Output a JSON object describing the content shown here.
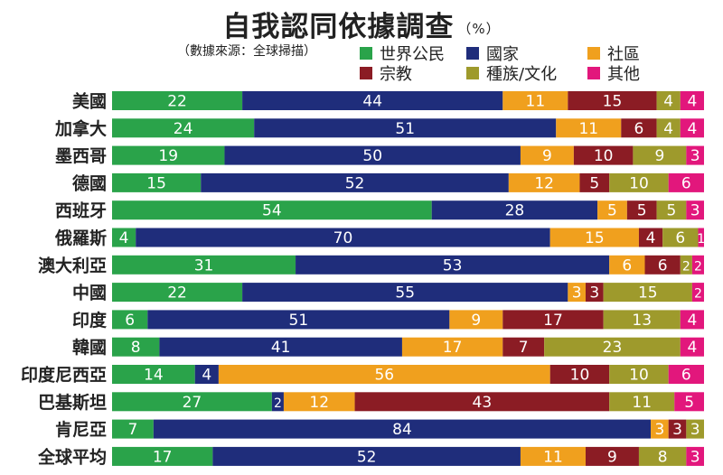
{
  "chart_data": {
    "type": "bar",
    "orientation": "horizontal-stacked",
    "title": "自我認同依據調查",
    "title_unit": "（%）",
    "source_note": "（數據來源：全球掃描）",
    "legend_placement": "top-right",
    "categories": [
      "美國",
      "加拿大",
      "墨西哥",
      "德國",
      "西班牙",
      "俄羅斯",
      "澳大利亞",
      "中國",
      "印度",
      "韓國",
      "印度尼西亞",
      "巴基斯坦",
      "肯尼亞",
      "全球平均"
    ],
    "series": [
      {
        "name": "世界公民",
        "color": "#2aa34a",
        "values": [
          22,
          24,
          19,
          15,
          54,
          4,
          31,
          22,
          6,
          8,
          14,
          27,
          7,
          17
        ]
      },
      {
        "name": "國家",
        "color": "#1f2d7b",
        "values": [
          44,
          51,
          50,
          52,
          28,
          70,
          53,
          55,
          51,
          41,
          4,
          2,
          84,
          52
        ]
      },
      {
        "name": "社區",
        "color": "#f0a01e",
        "values": [
          11,
          11,
          9,
          12,
          5,
          15,
          6,
          3,
          9,
          17,
          56,
          12,
          3,
          11
        ]
      },
      {
        "name": "宗教",
        "color": "#8b1c24",
        "values": [
          15,
          6,
          10,
          5,
          5,
          4,
          6,
          3,
          17,
          7,
          10,
          43,
          3,
          9
        ]
      },
      {
        "name": "種族/文化",
        "color": "#9e9a2c",
        "values": [
          4,
          4,
          9,
          10,
          5,
          6,
          2,
          15,
          13,
          23,
          10,
          11,
          3,
          8
        ]
      },
      {
        "name": "其他",
        "color": "#e2177c",
        "values": [
          4,
          4,
          3,
          6,
          3,
          1,
          2,
          2,
          4,
          4,
          6,
          5,
          null,
          3
        ]
      }
    ],
    "xlim": [
      0,
      100
    ],
    "grid": false
  }
}
